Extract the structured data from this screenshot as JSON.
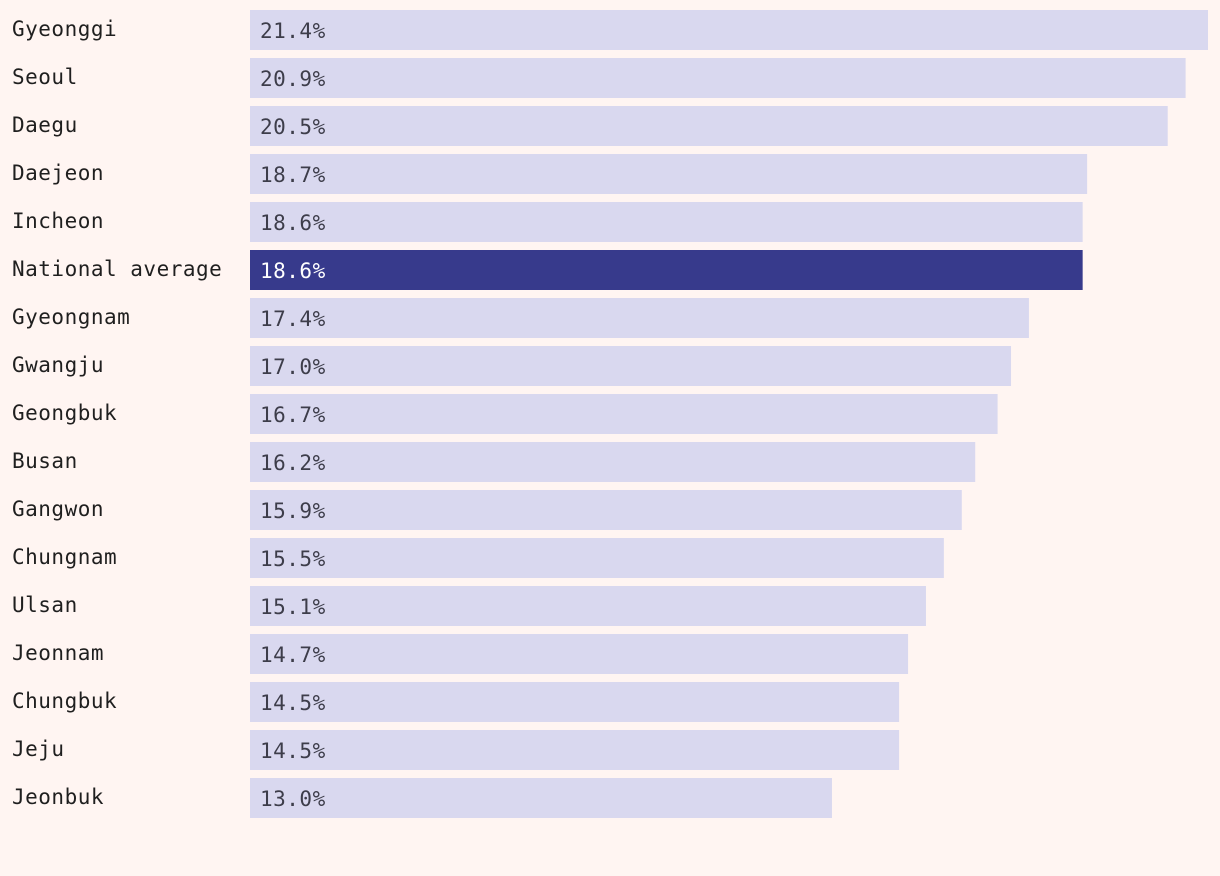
{
  "chart_data": {
    "type": "bar",
    "orientation": "horizontal",
    "title": "",
    "xlabel": "",
    "ylabel": "",
    "xlim": [
      0,
      21.4
    ],
    "grid": false,
    "legend": "none",
    "value_suffix": "%",
    "categories": [
      "Gyeonggi",
      "Seoul",
      "Daegu",
      "Daejeon",
      "Incheon",
      "National average",
      "Gyeongnam",
      "Gwangju",
      "Geongbuk",
      "Busan",
      "Gangwon",
      "Chungnam",
      "Ulsan",
      "Jeonnam",
      "Chungbuk",
      "Jeju",
      "Jeonbuk"
    ],
    "values": [
      21.4,
      20.9,
      20.5,
      18.7,
      18.6,
      18.6,
      17.4,
      17.0,
      16.7,
      16.2,
      15.9,
      15.5,
      15.1,
      14.7,
      14.5,
      14.5,
      13.0
    ],
    "value_labels": [
      "21.4%",
      "20.9%",
      "20.5%",
      "18.7%",
      "18.6%",
      "18.6%",
      "17.4%",
      "17.0%",
      "16.7%",
      "16.2%",
      "15.9%",
      "15.5%",
      "15.1%",
      "14.7%",
      "14.5%",
      "14.5%",
      "13.0%"
    ],
    "highlight_category": "National average",
    "colors": {
      "background": "#fff5f2",
      "bar": "#d9d8ef",
      "bar_highlight": "#373a8c",
      "label": "#1f1f1f",
      "value_label": "#3d3d4a",
      "value_label_highlight": "#ffffff"
    }
  }
}
